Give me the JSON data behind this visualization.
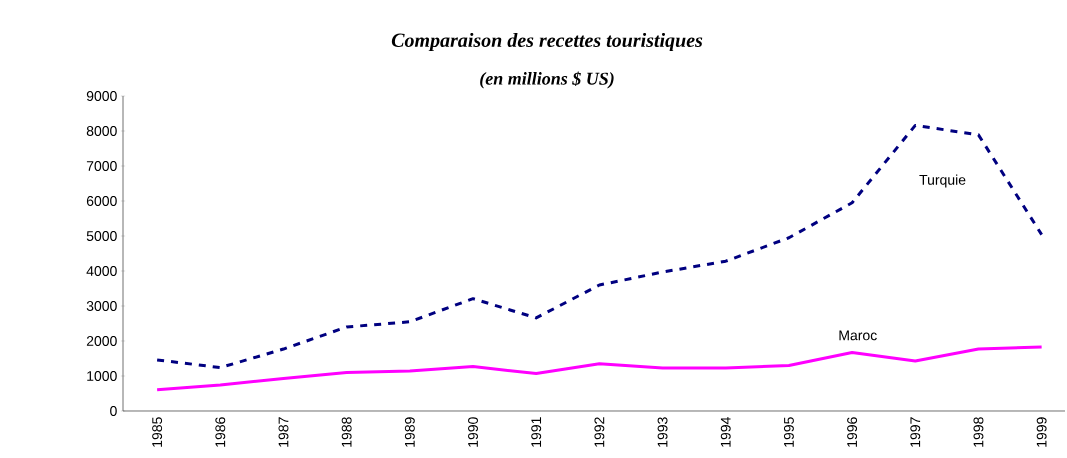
{
  "chart_data": {
    "type": "line",
    "title": "Comparaison des recettes touristiques",
    "subtitle": "(en millions $ US)",
    "categories": [
      "1985",
      "1986",
      "1987",
      "1988",
      "1989",
      "1990",
      "1991",
      "1992",
      "1993",
      "1994",
      "1995",
      "1996",
      "1997",
      "1998",
      "1999"
    ],
    "series": [
      {
        "name": "Turquie",
        "color": "#000080",
        "line_style": "dashed",
        "values": [
          1460,
          1240,
          1770,
          2400,
          2550,
          3210,
          2660,
          3600,
          3970,
          4280,
          4950,
          5950,
          8160,
          7890,
          5040
        ]
      },
      {
        "name": "Maroc",
        "color": "#ff00ff",
        "line_style": "solid",
        "values": [
          610,
          740,
          930,
          1100,
          1140,
          1270,
          1070,
          1350,
          1230,
          1230,
          1300,
          1670,
          1430,
          1770,
          1830
        ]
      }
    ],
    "ylim": [
      0,
      9000
    ],
    "yticks": [
      0,
      1000,
      2000,
      3000,
      4000,
      5000,
      6000,
      7000,
      8000,
      9000
    ],
    "grid": false,
    "marker": "none"
  }
}
